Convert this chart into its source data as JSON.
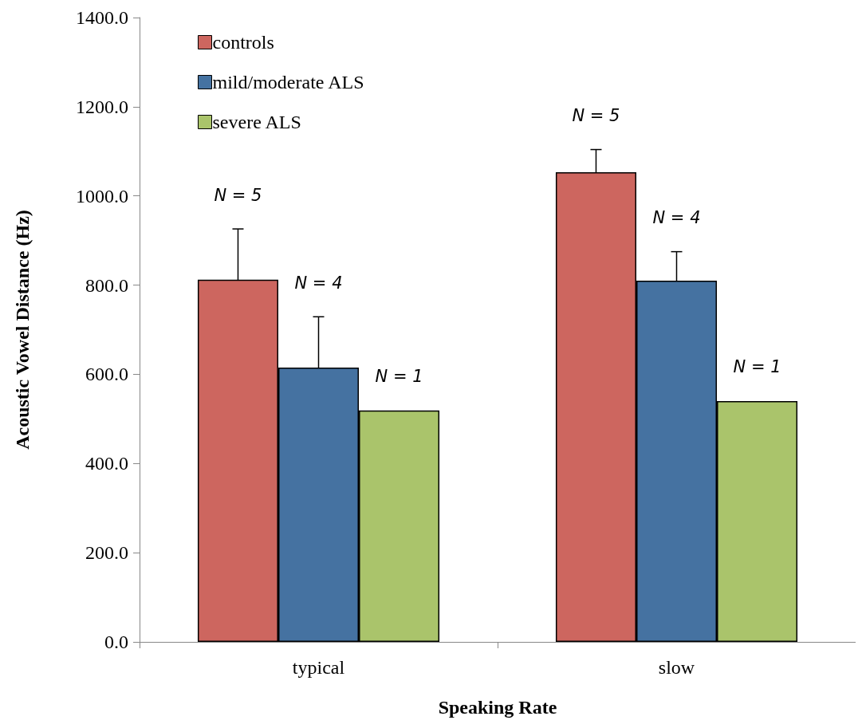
{
  "chart_data": {
    "type": "bar",
    "xlabel": "Speaking Rate",
    "ylabel": "Acoustic Vowel Distance (Hz)",
    "categories": [
      "typical",
      "slow"
    ],
    "series": [
      {
        "name": "controls",
        "color": "#cd665f",
        "values": [
          812,
          1053
        ],
        "errors": [
          114,
          51
        ]
      },
      {
        "name": "mild/moderate ALS",
        "color": "#4572a1",
        "values": [
          615,
          810
        ],
        "errors": [
          114,
          65
        ]
      },
      {
        "name": "severe ALS",
        "color": "#aac46b",
        "values": [
          519,
          540
        ]
      }
    ],
    "ylim": [
      0,
      1400
    ],
    "yticks": [
      {
        "value": 0,
        "label": "0.0"
      },
      {
        "value": 200,
        "label": "200.0"
      },
      {
        "value": 400,
        "label": "400.0"
      },
      {
        "value": 600,
        "label": "600.0"
      },
      {
        "value": 800,
        "label": "800.0"
      },
      {
        "value": 1000,
        "label": "1000.0"
      },
      {
        "value": 1200,
        "label": "1200.0"
      },
      {
        "value": 1400,
        "label": "1400.0"
      }
    ],
    "annotations": [
      "N = 5",
      "N = 4",
      "N = 1",
      "N = 5",
      "N = 4",
      "N = 1"
    ],
    "grid": false,
    "legend": "top left"
  }
}
